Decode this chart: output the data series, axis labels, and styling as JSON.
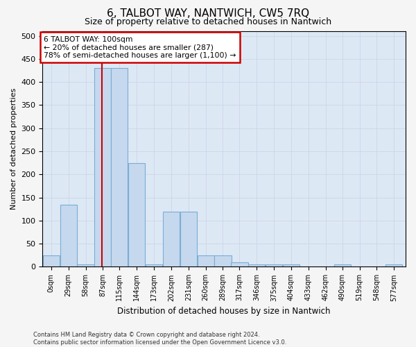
{
  "title": "6, TALBOT WAY, NANTWICH, CW5 7RQ",
  "subtitle": "Size of property relative to detached houses in Nantwich",
  "xlabel": "Distribution of detached houses by size in Nantwich",
  "ylabel": "Number of detached properties",
  "footnote": "Contains HM Land Registry data © Crown copyright and database right 2024.\nContains public sector information licensed under the Open Government Licence v3.0.",
  "bar_lefts": [
    0,
    29,
    58,
    87,
    115,
    144,
    173,
    202,
    231,
    260,
    289,
    317,
    346,
    375,
    404,
    433,
    462,
    490,
    519,
    548,
    577
  ],
  "bar_labels": [
    "0sqm",
    "29sqm",
    "58sqm",
    "87sqm",
    "115sqm",
    "144sqm",
    "173sqm",
    "202sqm",
    "231sqm",
    "260sqm",
    "289sqm",
    "317sqm",
    "346sqm",
    "375sqm",
    "404sqm",
    "433sqm",
    "462sqm",
    "490sqm",
    "519sqm",
    "548sqm",
    "577sqm"
  ],
  "bar_heights": [
    25,
    135,
    5,
    430,
    430,
    225,
    5,
    120,
    120,
    25,
    25,
    10,
    5,
    5,
    5,
    0,
    0,
    5,
    0,
    0,
    5
  ],
  "bar_color": "#c5d8ee",
  "bar_edge_color": "#7aadd4",
  "ylim": [
    0,
    510
  ],
  "yticks": [
    0,
    50,
    100,
    150,
    200,
    250,
    300,
    350,
    400,
    450,
    500
  ],
  "property_line_x": 100,
  "property_line_color": "#cc0000",
  "annotation_text": "6 TALBOT WAY: 100sqm\n← 20% of detached houses are smaller (287)\n78% of semi-detached houses are larger (1,100) →",
  "annotation_box_facecolor": "#ffffff",
  "annotation_box_edgecolor": "#cc0000",
  "grid_color": "#ccd6e8",
  "background_color": "#dde8f5",
  "fig_facecolor": "#f5f5f5",
  "bin_width": 29
}
